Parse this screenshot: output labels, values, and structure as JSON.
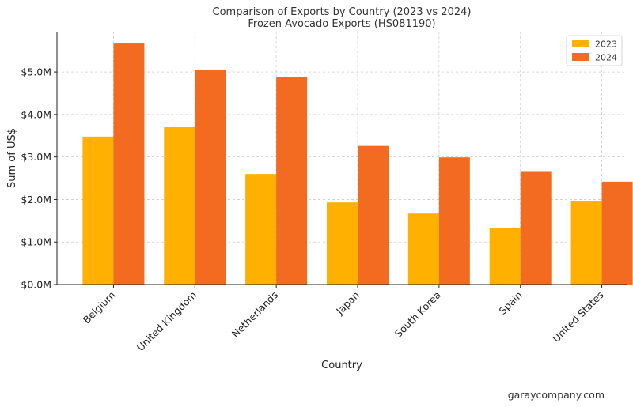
{
  "chart_data": {
    "type": "bar",
    "title": "Comparison of Exports by Country (2023 vs 2024)",
    "subtitle": "Frozen Avocado Exports (HS081190)",
    "xlabel": "Country",
    "ylabel": "Sum of US$",
    "categories": [
      "Belgium",
      "United Kingdom",
      "Netherlands",
      "Japan",
      "South Korea",
      "Spain",
      "United States"
    ],
    "series": [
      {
        "name": "2023",
        "color": "#ffb000",
        "values": [
          3.48,
          3.7,
          2.6,
          1.93,
          1.67,
          1.33,
          1.97
        ]
      },
      {
        "name": "2024",
        "color": "#f26b21",
        "values": [
          5.67,
          5.04,
          4.89,
          3.26,
          2.99,
          2.65,
          2.42
        ]
      }
    ],
    "ylim": [
      0,
      5.95
    ],
    "yticks": [
      0,
      1,
      2,
      3,
      4,
      5
    ],
    "ytick_labels": [
      "$0.0M",
      "$1.0M",
      "$2.0M",
      "$3.0M",
      "$4.0M",
      "$5.0M"
    ],
    "grid": true,
    "legend_position": "top-right"
  },
  "watermark": "garaycompany.com"
}
